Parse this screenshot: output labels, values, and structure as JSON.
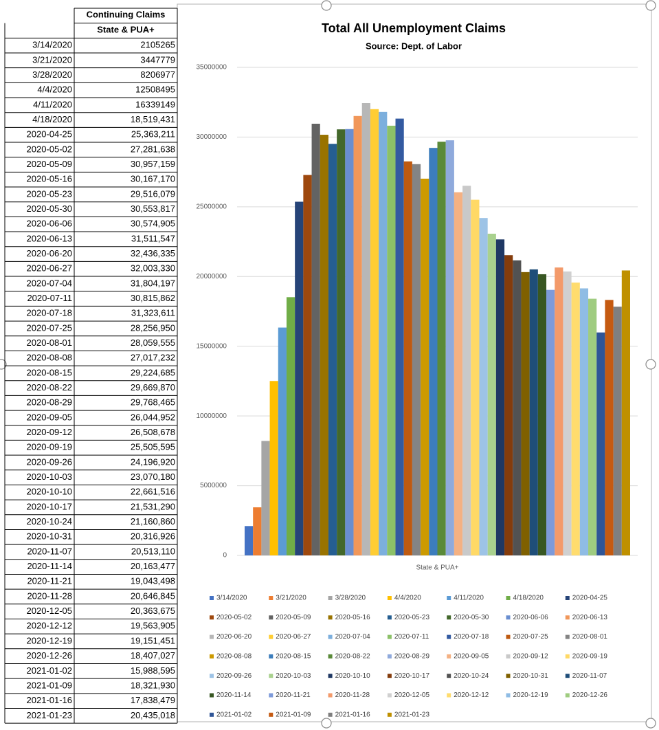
{
  "table": {
    "title": "Continuing Claims",
    "column": "State & PUA+",
    "rows": [
      [
        "3/14/2020",
        "2105265"
      ],
      [
        "3/21/2020",
        "3447779"
      ],
      [
        "3/28/2020",
        "8206977"
      ],
      [
        "4/4/2020",
        "12508495"
      ],
      [
        "4/11/2020",
        "16339149"
      ],
      [
        "4/18/2020",
        "18,519,431"
      ],
      [
        "2020-04-25",
        "25,363,211"
      ],
      [
        "2020-05-02",
        "27,281,638"
      ],
      [
        "2020-05-09",
        "30,957,159"
      ],
      [
        "2020-05-16",
        "30,167,170"
      ],
      [
        "2020-05-23",
        "29,516,079"
      ],
      [
        "2020-05-30",
        "30,553,817"
      ],
      [
        "2020-06-06",
        "30,574,905"
      ],
      [
        "2020-06-13",
        "31,511,547"
      ],
      [
        "2020-06-20",
        "32,436,335"
      ],
      [
        "2020-06-27",
        "32,003,330"
      ],
      [
        "2020-07-04",
        "31,804,197"
      ],
      [
        "2020-07-11",
        "30,815,862"
      ],
      [
        "2020-07-18",
        "31,323,611"
      ],
      [
        "2020-07-25",
        "28,256,950"
      ],
      [
        "2020-08-01",
        "28,059,555"
      ],
      [
        "2020-08-08",
        "27,017,232"
      ],
      [
        "2020-08-15",
        "29,224,685"
      ],
      [
        "2020-08-22",
        "29,669,870"
      ],
      [
        "2020-08-29",
        "29,768,465"
      ],
      [
        "2020-09-05",
        "26,044,952"
      ],
      [
        "2020-09-12",
        "26,508,678"
      ],
      [
        "2020-09-19",
        "25,505,595"
      ],
      [
        "2020-09-26",
        "24,196,920"
      ],
      [
        "2020-10-03",
        "23,070,180"
      ],
      [
        "2020-10-10",
        "22,661,516"
      ],
      [
        "2020-10-17",
        "21,531,290"
      ],
      [
        "2020-10-24",
        "21,160,860"
      ],
      [
        "2020-10-31",
        "20,316,926"
      ],
      [
        "2020-11-07",
        "20,513,110"
      ],
      [
        "2020-11-14",
        "20,163,477"
      ],
      [
        "2020-11-21",
        "19,043,498"
      ],
      [
        "2020-11-28",
        "20,646,845"
      ],
      [
        "2020-12-05",
        "20,363,675"
      ],
      [
        "2020-12-12",
        "19,563,905"
      ],
      [
        "2020-12-19",
        "19,151,451"
      ],
      [
        "2020-12-26",
        "18,407,027"
      ],
      [
        "2021-01-02",
        "15,988,595"
      ],
      [
        "2021-01-09",
        "18,321,930"
      ],
      [
        "2021-01-16",
        "17,838,479"
      ],
      [
        "2021-01-23",
        "20,435,018"
      ]
    ]
  },
  "chart_data": {
    "type": "bar",
    "title": "Total All Unemployment Claims",
    "subtitle": "Source: Dept. of Labor",
    "categories": [
      "State & PUA+"
    ],
    "ylim": [
      0,
      35000000
    ],
    "yticks": [
      0,
      5000000,
      10000000,
      15000000,
      20000000,
      25000000,
      30000000,
      35000000
    ],
    "grid": true,
    "legend": "bottom",
    "series": [
      {
        "name": "3/14/2020",
        "color": "#4472C4",
        "values": [
          2105265
        ]
      },
      {
        "name": "3/21/2020",
        "color": "#ED7D31",
        "values": [
          3447779
        ]
      },
      {
        "name": "3/28/2020",
        "color": "#A5A5A5",
        "values": [
          8206977
        ]
      },
      {
        "name": "4/4/2020",
        "color": "#FFC000",
        "values": [
          12508495
        ]
      },
      {
        "name": "4/11/2020",
        "color": "#5B9BD5",
        "values": [
          16339149
        ]
      },
      {
        "name": "4/18/2020",
        "color": "#70AD47",
        "values": [
          18519431
        ]
      },
      {
        "name": "2020-04-25",
        "color": "#264478",
        "values": [
          25363211
        ]
      },
      {
        "name": "2020-05-02",
        "color": "#9E480E",
        "values": [
          27281638
        ]
      },
      {
        "name": "2020-05-09",
        "color": "#636363",
        "values": [
          30957159
        ]
      },
      {
        "name": "2020-05-16",
        "color": "#997300",
        "values": [
          30167170
        ]
      },
      {
        "name": "2020-05-23",
        "color": "#255E91",
        "values": [
          29516079
        ]
      },
      {
        "name": "2020-05-30",
        "color": "#43682B",
        "values": [
          30553817
        ]
      },
      {
        "name": "2020-06-06",
        "color": "#698ED0",
        "values": [
          30574905
        ]
      },
      {
        "name": "2020-06-13",
        "color": "#F1975A",
        "values": [
          31511547
        ]
      },
      {
        "name": "2020-06-20",
        "color": "#B7B7B7",
        "values": [
          32436335
        ]
      },
      {
        "name": "2020-06-27",
        "color": "#FFCD33",
        "values": [
          32003330
        ]
      },
      {
        "name": "2020-07-04",
        "color": "#7CAFDD",
        "values": [
          31804197
        ]
      },
      {
        "name": "2020-07-11",
        "color": "#8CC168",
        "values": [
          30815862
        ]
      },
      {
        "name": "2020-07-18",
        "color": "#335AA1",
        "values": [
          31323611
        ]
      },
      {
        "name": "2020-07-25",
        "color": "#BE5A11",
        "values": [
          28256950
        ]
      },
      {
        "name": "2020-08-01",
        "color": "#848484",
        "values": [
          28059555
        ]
      },
      {
        "name": "2020-08-08",
        "color": "#CC9A00",
        "values": [
          27017232
        ]
      },
      {
        "name": "2020-08-15",
        "color": "#3C7DBC",
        "values": [
          29224685
        ]
      },
      {
        "name": "2020-08-22",
        "color": "#5A8A39",
        "values": [
          29669870
        ]
      },
      {
        "name": "2020-08-29",
        "color": "#8FAADC",
        "values": [
          29768465
        ]
      },
      {
        "name": "2020-09-05",
        "color": "#F4B183",
        "values": [
          26044952
        ]
      },
      {
        "name": "2020-09-12",
        "color": "#C9C9C9",
        "values": [
          26508678
        ]
      },
      {
        "name": "2020-09-19",
        "color": "#FFD966",
        "values": [
          25505595
        ]
      },
      {
        "name": "2020-09-26",
        "color": "#9DC3E6",
        "values": [
          24196920
        ]
      },
      {
        "name": "2020-10-03",
        "color": "#A9D18E",
        "values": [
          23070180
        ]
      },
      {
        "name": "2020-10-10",
        "color": "#1F3864",
        "values": [
          22661516
        ]
      },
      {
        "name": "2020-10-17",
        "color": "#843C0C",
        "values": [
          21531290
        ]
      },
      {
        "name": "2020-10-24",
        "color": "#525252",
        "values": [
          21160860
        ]
      },
      {
        "name": "2020-10-31",
        "color": "#7F6000",
        "values": [
          20316926
        ]
      },
      {
        "name": "2020-11-07",
        "color": "#1F4E79",
        "values": [
          20513110
        ]
      },
      {
        "name": "2020-11-14",
        "color": "#385723",
        "values": [
          20163477
        ]
      },
      {
        "name": "2020-11-21",
        "color": "#7D9ADA",
        "values": [
          19043498
        ]
      },
      {
        "name": "2020-11-28",
        "color": "#F39A6A",
        "values": [
          20646845
        ]
      },
      {
        "name": "2020-12-05",
        "color": "#D0D0D0",
        "values": [
          20363675
        ]
      },
      {
        "name": "2020-12-12",
        "color": "#FFDC6E",
        "values": [
          19563905
        ]
      },
      {
        "name": "2020-12-19",
        "color": "#8FBCE4",
        "values": [
          19151451
        ]
      },
      {
        "name": "2020-12-26",
        "color": "#9FCC80",
        "values": [
          18407027
        ]
      },
      {
        "name": "2021-01-02",
        "color": "#2F5597",
        "values": [
          15988595
        ]
      },
      {
        "name": "2021-01-09",
        "color": "#C55A11",
        "values": [
          18321930
        ]
      },
      {
        "name": "2021-01-16",
        "color": "#7F7F7F",
        "values": [
          17838479
        ]
      },
      {
        "name": "2021-01-23",
        "color": "#BF9000",
        "values": [
          20435018
        ]
      }
    ]
  }
}
